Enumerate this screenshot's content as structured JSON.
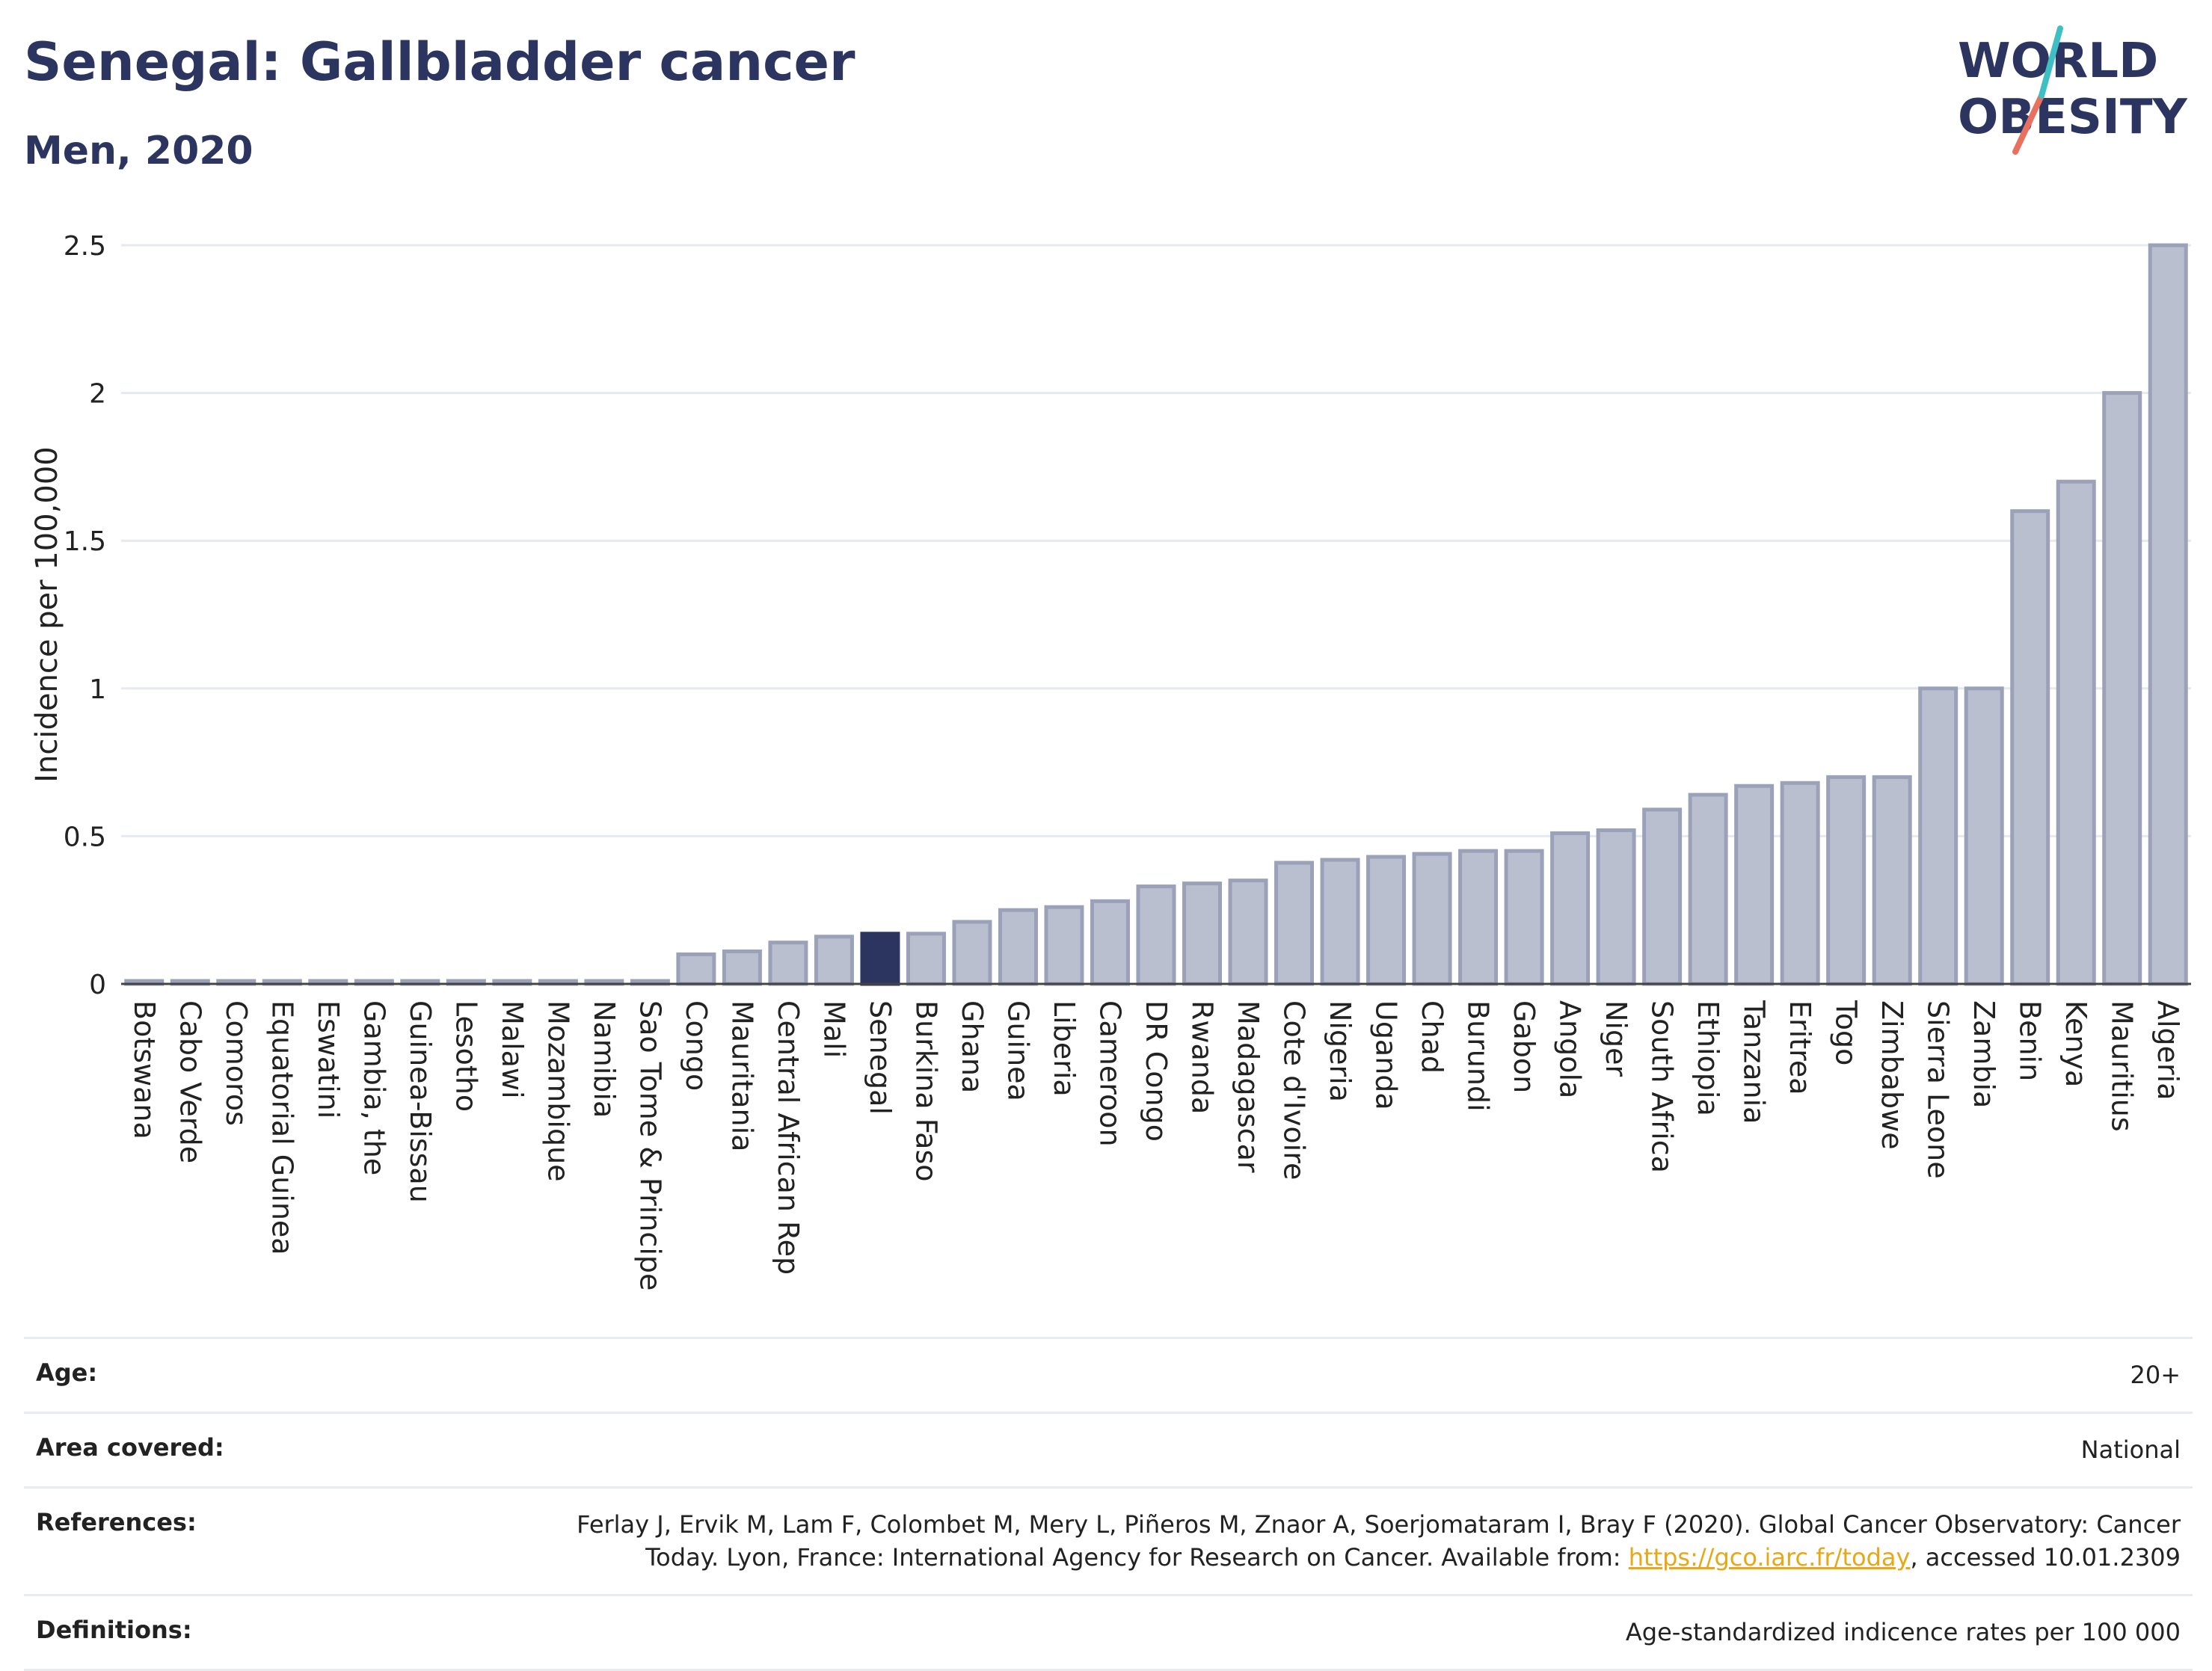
{
  "header": {
    "title": "Senegal: Gallbladder cancer",
    "subtitle": "Men, 2020"
  },
  "logo": {
    "line1": "WORLD",
    "line2": "OBESITY"
  },
  "chart_data": {
    "type": "bar",
    "ylabel": "Incidence per 100,000",
    "xlabel": "",
    "ylim": [
      0,
      2.5
    ],
    "yticks": [
      "0",
      "0.5",
      "1",
      "1.5",
      "2",
      "2.5"
    ],
    "highlight": "Senegal",
    "colors": {
      "bar": "#b9bfcf",
      "bar_border": "#9aa1b8",
      "highlight": "#2b3560"
    },
    "categories": [
      "Botswana",
      "Cabo Verde",
      "Comoros",
      "Equatorial Guinea",
      "Eswatini",
      "Gambia, the",
      "Guinea-Bissau",
      "Lesotho",
      "Malawi",
      "Mozambique",
      "Namibia",
      "Sao Tome & Principe",
      "Congo",
      "Mauritania",
      "Central African Rep",
      "Mali",
      "Senegal",
      "Burkina Faso",
      "Ghana",
      "Guinea",
      "Liberia",
      "Cameroon",
      "DR Congo",
      "Rwanda",
      "Madagascar",
      "Cote d'Ivoire",
      "Nigeria",
      "Uganda",
      "Chad",
      "Burundi",
      "Gabon",
      "Angola",
      "Niger",
      "South Africa",
      "Ethiopia",
      "Tanzania",
      "Eritrea",
      "Togo",
      "Zimbabwe",
      "Sierra Leone",
      "Zambia",
      "Benin",
      "Kenya",
      "Mauritius",
      "Algeria"
    ],
    "values": [
      0.01,
      0.01,
      0.01,
      0.01,
      0.01,
      0.01,
      0.01,
      0.01,
      0.01,
      0.01,
      0.01,
      0.01,
      0.1,
      0.11,
      0.14,
      0.16,
      0.17,
      0.17,
      0.21,
      0.25,
      0.26,
      0.28,
      0.33,
      0.34,
      0.35,
      0.41,
      0.42,
      0.43,
      0.44,
      0.45,
      0.45,
      0.51,
      0.52,
      0.59,
      0.64,
      0.67,
      0.68,
      0.7,
      0.7,
      1.0,
      1.0,
      1.6,
      1.7,
      2.0,
      2.5
    ]
  },
  "info": {
    "age": {
      "label": "Age:",
      "value": "20+"
    },
    "area": {
      "label": "Area covered:",
      "value": "National"
    },
    "references": {
      "label": "References:",
      "text_before": "Ferlay J, Ervik M, Lam F, Colombet M, Mery L, Piñeros M, Znaor A, Soerjomataram I, Bray F (2020). Global Cancer Observatory: Cancer Today. Lyon, France: International Agency for Research on Cancer. Available from: ",
      "link": "https://gco.iarc.fr/today",
      "text_after": ", accessed 10.01.2309"
    },
    "definitions": {
      "label": "Definitions:",
      "value": "Age-standardized indicence rates per 100 000"
    }
  }
}
